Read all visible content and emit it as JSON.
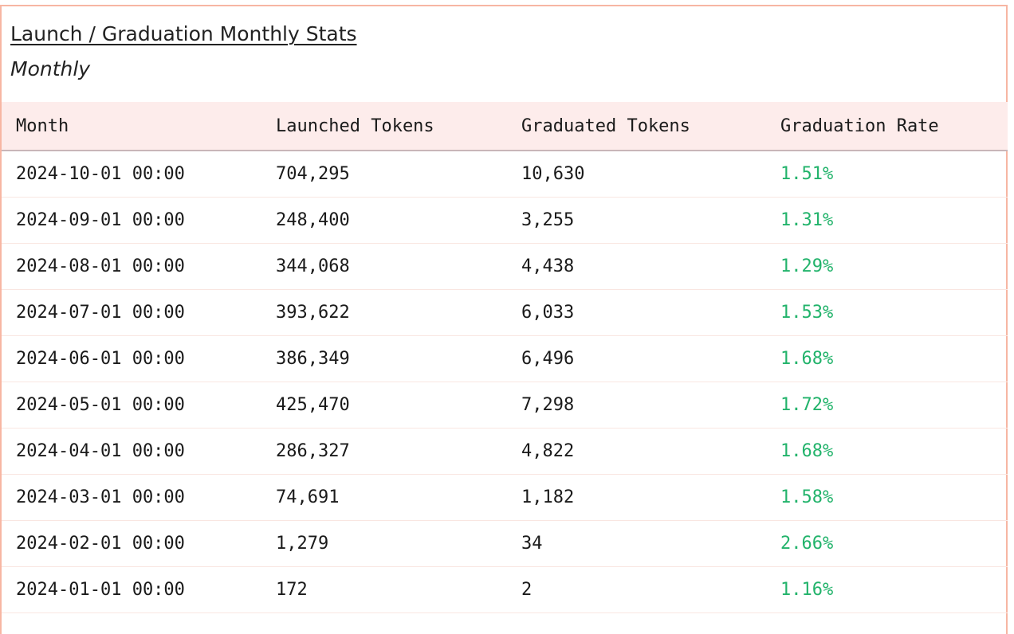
{
  "header": {
    "title": "Launch / Graduation Monthly Stats",
    "subtitle": "Monthly"
  },
  "table": {
    "columns": [
      "Month",
      "Launched Tokens",
      "Graduated Tokens",
      "Graduation Rate"
    ],
    "rows": [
      {
        "month": "2024-10-01 00:00",
        "launched": "704,295",
        "graduated": "10,630",
        "rate": "1.51%"
      },
      {
        "month": "2024-09-01 00:00",
        "launched": "248,400",
        "graduated": "3,255",
        "rate": "1.31%"
      },
      {
        "month": "2024-08-01 00:00",
        "launched": "344,068",
        "graduated": "4,438",
        "rate": "1.29%"
      },
      {
        "month": "2024-07-01 00:00",
        "launched": "393,622",
        "graduated": "6,033",
        "rate": "1.53%"
      },
      {
        "month": "2024-06-01 00:00",
        "launched": "386,349",
        "graduated": "6,496",
        "rate": "1.68%"
      },
      {
        "month": "2024-05-01 00:00",
        "launched": "425,470",
        "graduated": "7,298",
        "rate": "1.72%"
      },
      {
        "month": "2024-04-01 00:00",
        "launched": "286,327",
        "graduated": "4,822",
        "rate": "1.68%"
      },
      {
        "month": "2024-03-01 00:00",
        "launched": "74,691",
        "graduated": "1,182",
        "rate": "1.58%"
      },
      {
        "month": "2024-02-01 00:00",
        "launched": "1,279",
        "graduated": "34",
        "rate": "2.66%"
      },
      {
        "month": "2024-01-01 00:00",
        "launched": "172",
        "graduated": "2",
        "rate": "1.16%"
      }
    ]
  },
  "colors": {
    "border": "#f7b6a3",
    "header_bg": "#fdeceb",
    "rate_text": "#22b36b"
  }
}
